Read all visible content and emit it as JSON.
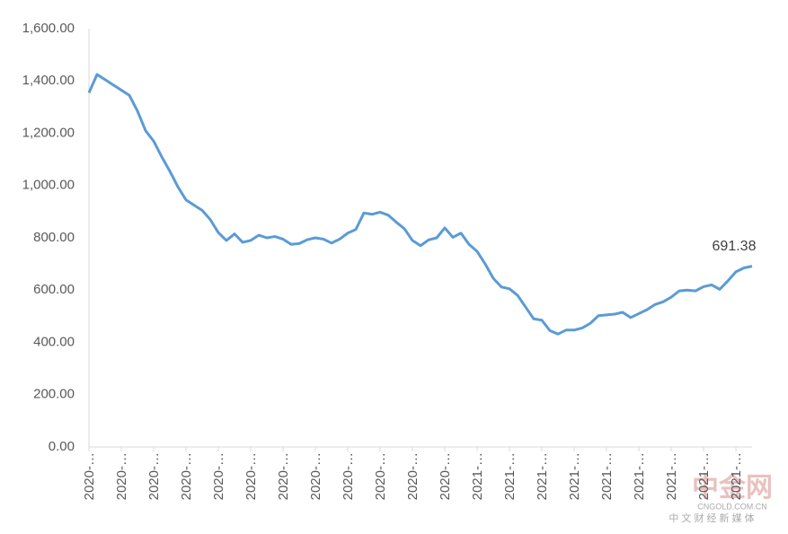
{
  "chart_data": {
    "type": "line",
    "categories": [
      "2020-…",
      null,
      null,
      null,
      "2020-…",
      null,
      null,
      null,
      "2020-…",
      null,
      null,
      null,
      "2020-…",
      null,
      null,
      null,
      "2020-…",
      null,
      null,
      null,
      "2020-…",
      null,
      null,
      null,
      "2020-…",
      null,
      null,
      null,
      "2020-…",
      null,
      null,
      null,
      "2020-…",
      null,
      null,
      null,
      "2020-…",
      null,
      null,
      null,
      "2020-…",
      null,
      null,
      null,
      "2020-…",
      null,
      null,
      null,
      "2021-…",
      null,
      null,
      null,
      "2021-…",
      null,
      null,
      null,
      "2021-…",
      null,
      null,
      null,
      "2021-…",
      null,
      null,
      null,
      "2021-…",
      null,
      null,
      null,
      "2021-…",
      null,
      null,
      null,
      "2021-…",
      null,
      null,
      null,
      "2021-…",
      null,
      null,
      null,
      "2021-…",
      null,
      null
    ],
    "series": [
      {
        "color": "#5b9bd5",
        "values": [
          1355,
          1425,
          1405,
          1385,
          1365,
          1345,
          1285,
          1210,
          1170,
          1110,
          1055,
          995,
          945,
          925,
          905,
          870,
          820,
          790,
          815,
          783,
          790,
          810,
          800,
          805,
          795,
          775,
          778,
          793,
          800,
          795,
          780,
          795,
          818,
          832,
          895,
          890,
          898,
          887,
          860,
          835,
          790,
          770,
          792,
          800,
          838,
          802,
          818,
          775,
          748,
          700,
          645,
          612,
          605,
          580,
          535,
          490,
          485,
          445,
          432,
          447,
          447,
          455,
          473,
          502,
          505,
          508,
          515,
          495,
          510,
          525,
          545,
          555,
          573,
          597,
          600,
          597,
          613,
          620,
          603,
          635,
          670,
          685,
          691.38
        ]
      }
    ],
    "ylim": [
      0,
      1600
    ],
    "yticks": [
      {
        "value": 0,
        "label": "0.00"
      },
      {
        "value": 200,
        "label": "200.00"
      },
      {
        "value": 400,
        "label": "400.00"
      },
      {
        "value": 600,
        "label": "600.00"
      },
      {
        "value": 800,
        "label": "800.00"
      },
      {
        "value": 1000,
        "label": "1,000.00"
      },
      {
        "value": 1200,
        "label": "1,200.00"
      },
      {
        "value": 1400,
        "label": "1,400.00"
      },
      {
        "value": 1600,
        "label": "1,600.00"
      }
    ],
    "grid": false
  },
  "watermark": {
    "logo": "中金网",
    "site": "CNGOLD.COM.CN",
    "slogan": "中 文 财 经 新 媒 体"
  }
}
